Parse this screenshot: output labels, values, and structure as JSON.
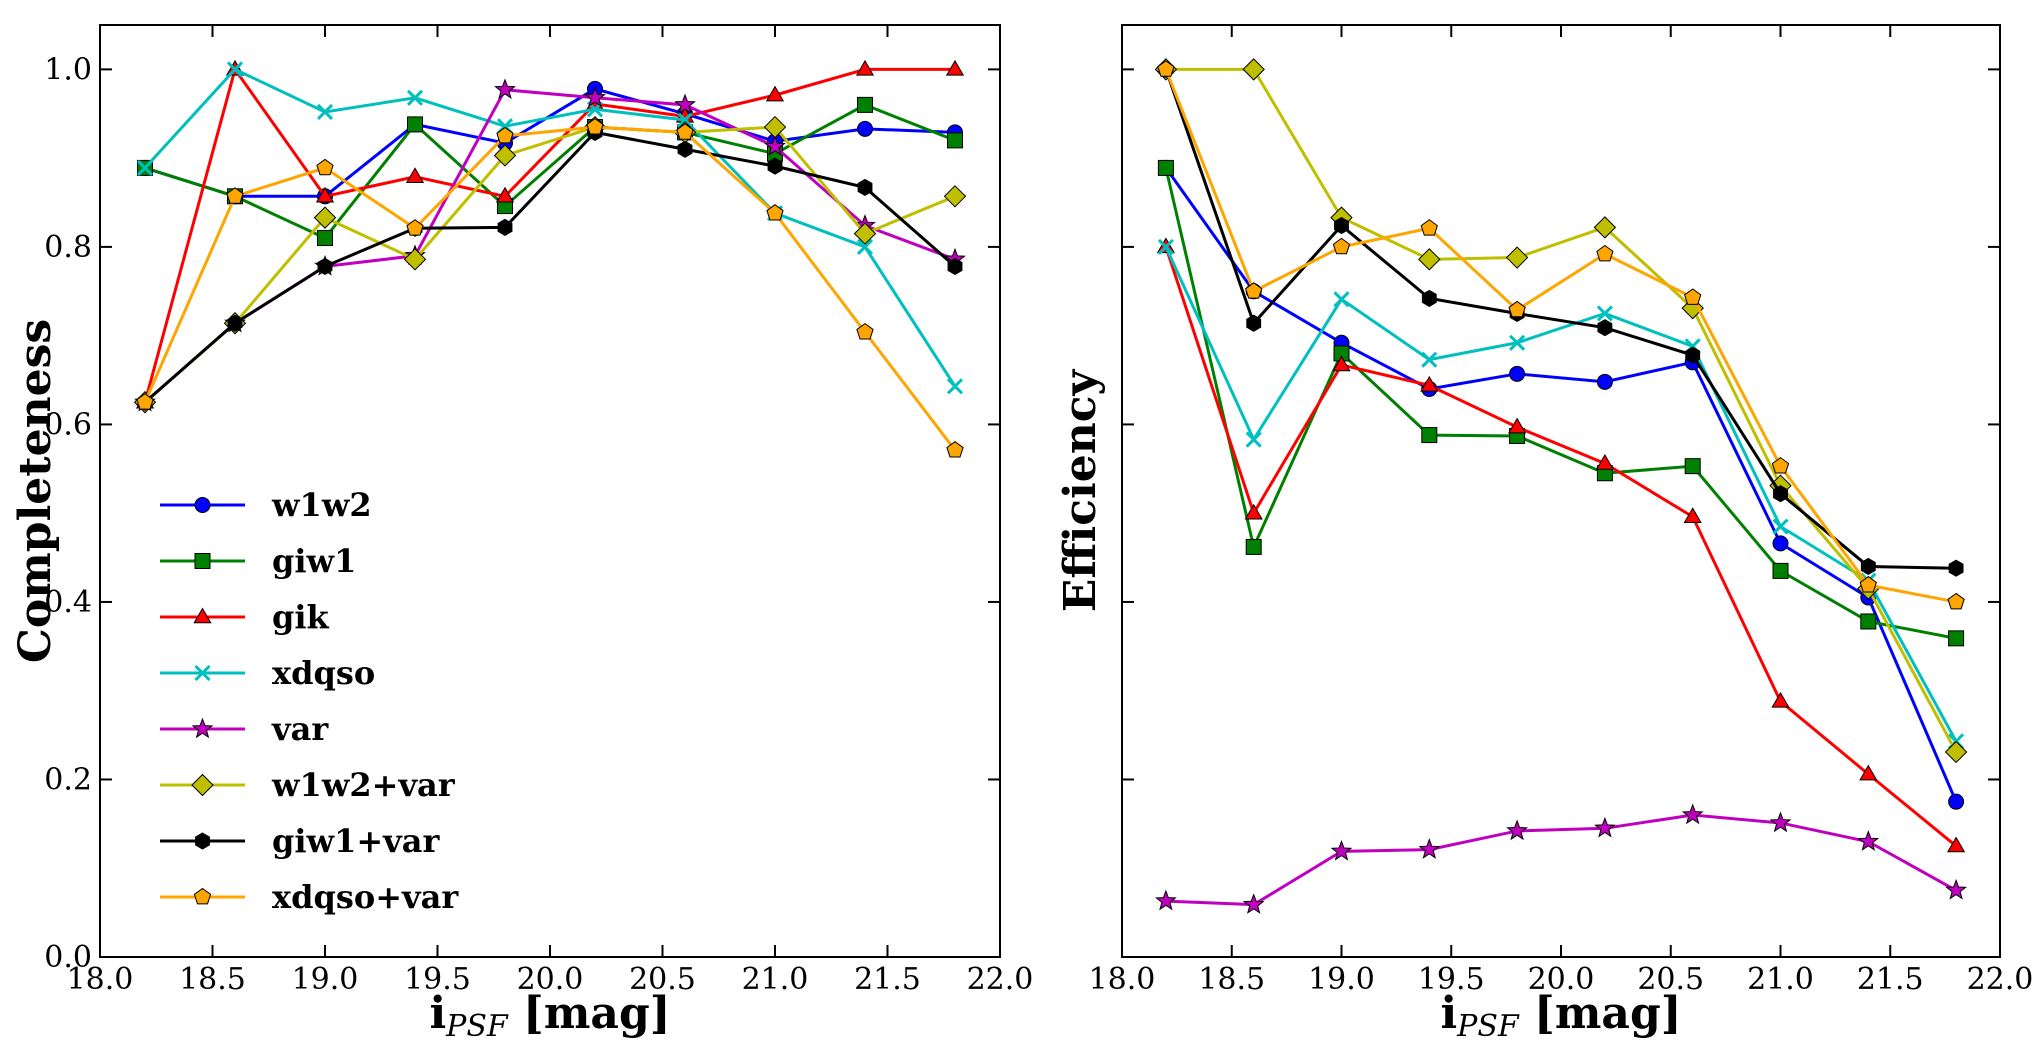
{
  "chart_data": [
    {
      "type": "line",
      "panel": "left",
      "title": "",
      "xlabel": "i",
      "xlabel_sub": "PSF",
      "xlabel_unit": " [mag]",
      "ylabel": "Completeness",
      "xlim": [
        18.0,
        22.0
      ],
      "ylim": [
        0.0,
        1.05
      ],
      "xticks": [
        18.0,
        18.5,
        19.0,
        19.5,
        20.0,
        20.5,
        21.0,
        21.5,
        22.0
      ],
      "xtick_labels": [
        "18.0",
        "18.5",
        "19.0",
        "19.5",
        "20.0",
        "20.5",
        "21.0",
        "21.5",
        "22.0"
      ],
      "yticks": [
        0.0,
        0.2,
        0.4,
        0.6,
        0.8,
        1.0
      ],
      "ytick_labels": [
        "0.0",
        "0.2",
        "0.4",
        "0.6",
        "0.8",
        "1.0"
      ],
      "grid": false,
      "legend_position": "lower-left",
      "x": [
        18.2,
        18.6,
        19.0,
        19.4,
        19.8,
        20.2,
        20.6,
        21.0,
        21.4,
        21.8
      ],
      "series": [
        {
          "name": "w1w2",
          "color": "#0000ff",
          "marker": "circle",
          "values": [
            0.889,
            0.857,
            0.857,
            0.938,
            0.917,
            0.978,
            0.95,
            0.919,
            0.933,
            0.929
          ]
        },
        {
          "name": "giw1",
          "color": "#008000",
          "marker": "square",
          "values": [
            0.889,
            0.857,
            0.81,
            0.938,
            0.846,
            0.935,
            0.929,
            0.905,
            0.96,
            0.92
          ]
        },
        {
          "name": "gik",
          "color": "#ff0000",
          "marker": "triangle",
          "values": [
            0.625,
            1.0,
            0.857,
            0.879,
            0.857,
            0.961,
            0.947,
            0.971,
            1.0,
            1.0
          ]
        },
        {
          "name": "xdqso",
          "color": "#00bfbf",
          "marker": "x",
          "values": [
            0.889,
            1.0,
            0.952,
            0.968,
            0.936,
            0.955,
            0.943,
            0.838,
            0.8,
            0.643
          ]
        },
        {
          "name": "var",
          "color": "#bf00bf",
          "marker": "star",
          "values": [
            0.625,
            0.714,
            0.778,
            0.79,
            0.977,
            0.968,
            0.96,
            0.913,
            0.824,
            0.786
          ]
        },
        {
          "name": "w1w2+var",
          "color": "#bfbf00",
          "marker": "diamond",
          "values": [
            0.625,
            0.714,
            0.833,
            0.786,
            0.903,
            0.935,
            0.929,
            0.935,
            0.815,
            0.857
          ]
        },
        {
          "name": "giw1+var",
          "color": "#000000",
          "marker": "hexagon",
          "values": [
            0.625,
            0.714,
            0.778,
            0.821,
            0.822,
            0.929,
            0.91,
            0.891,
            0.867,
            0.778
          ]
        },
        {
          "name": "xdqso+var",
          "color": "#ffa500",
          "marker": "pentagon",
          "values": [
            0.625,
            0.857,
            0.889,
            0.821,
            0.925,
            0.935,
            0.929,
            0.838,
            0.704,
            0.571
          ]
        }
      ]
    },
    {
      "type": "line",
      "panel": "right",
      "title": "",
      "xlabel": "i",
      "xlabel_sub": "PSF",
      "xlabel_unit": " [mag]",
      "ylabel": "Efficiency",
      "xlim": [
        18.0,
        22.0
      ],
      "ylim": [
        0.0,
        1.05
      ],
      "xticks": [
        18.0,
        18.5,
        19.0,
        19.5,
        20.0,
        20.5,
        21.0,
        21.5,
        22.0
      ],
      "xtick_labels": [
        "18.0",
        "18.5",
        "19.0",
        "19.5",
        "20.0",
        "20.5",
        "21.0",
        "21.5",
        "22.0"
      ],
      "yticks": [
        0.0,
        0.2,
        0.4,
        0.6,
        0.8,
        1.0
      ],
      "ytick_labels": [
        "",
        "",
        "",
        "",
        "",
        ""
      ],
      "grid": false,
      "x": [
        18.2,
        18.6,
        19.0,
        19.4,
        19.8,
        20.2,
        20.6,
        21.0,
        21.4,
        21.8
      ],
      "series": [
        {
          "name": "w1w2",
          "color": "#0000ff",
          "marker": "circle",
          "values": [
            0.889,
            0.75,
            0.692,
            0.64,
            0.657,
            0.648,
            0.67,
            0.466,
            0.405,
            0.175
          ]
        },
        {
          "name": "giw1",
          "color": "#008000",
          "marker": "square",
          "values": [
            0.889,
            0.462,
            0.68,
            0.588,
            0.587,
            0.545,
            0.553,
            0.435,
            0.378,
            0.359
          ]
        },
        {
          "name": "gik",
          "color": "#ff0000",
          "marker": "triangle",
          "values": [
            0.8,
            0.5,
            0.667,
            0.644,
            0.597,
            0.556,
            0.496,
            0.288,
            0.206,
            0.125
          ]
        },
        {
          "name": "xdqso",
          "color": "#00bfbf",
          "marker": "x",
          "values": [
            0.8,
            0.583,
            0.741,
            0.673,
            0.692,
            0.725,
            0.688,
            0.485,
            0.424,
            0.243
          ]
        },
        {
          "name": "var",
          "color": "#bf00bf",
          "marker": "star",
          "values": [
            0.063,
            0.059,
            0.119,
            0.121,
            0.142,
            0.145,
            0.16,
            0.151,
            0.13,
            0.075
          ]
        },
        {
          "name": "w1w2+var",
          "color": "#bfbf00",
          "marker": "diamond",
          "values": [
            1.0,
            1.0,
            0.833,
            0.786,
            0.788,
            0.822,
            0.731,
            0.531,
            0.415,
            0.231
          ]
        },
        {
          "name": "giw1+var",
          "color": "#000000",
          "marker": "hexagon",
          "values": [
            1.0,
            0.714,
            0.824,
            0.742,
            0.725,
            0.709,
            0.678,
            0.522,
            0.44,
            0.438
          ]
        },
        {
          "name": "xdqso+var",
          "color": "#ffa500",
          "marker": "pentagon",
          "values": [
            1.0,
            0.75,
            0.8,
            0.821,
            0.729,
            0.792,
            0.743,
            0.553,
            0.419,
            0.4
          ]
        }
      ]
    }
  ]
}
